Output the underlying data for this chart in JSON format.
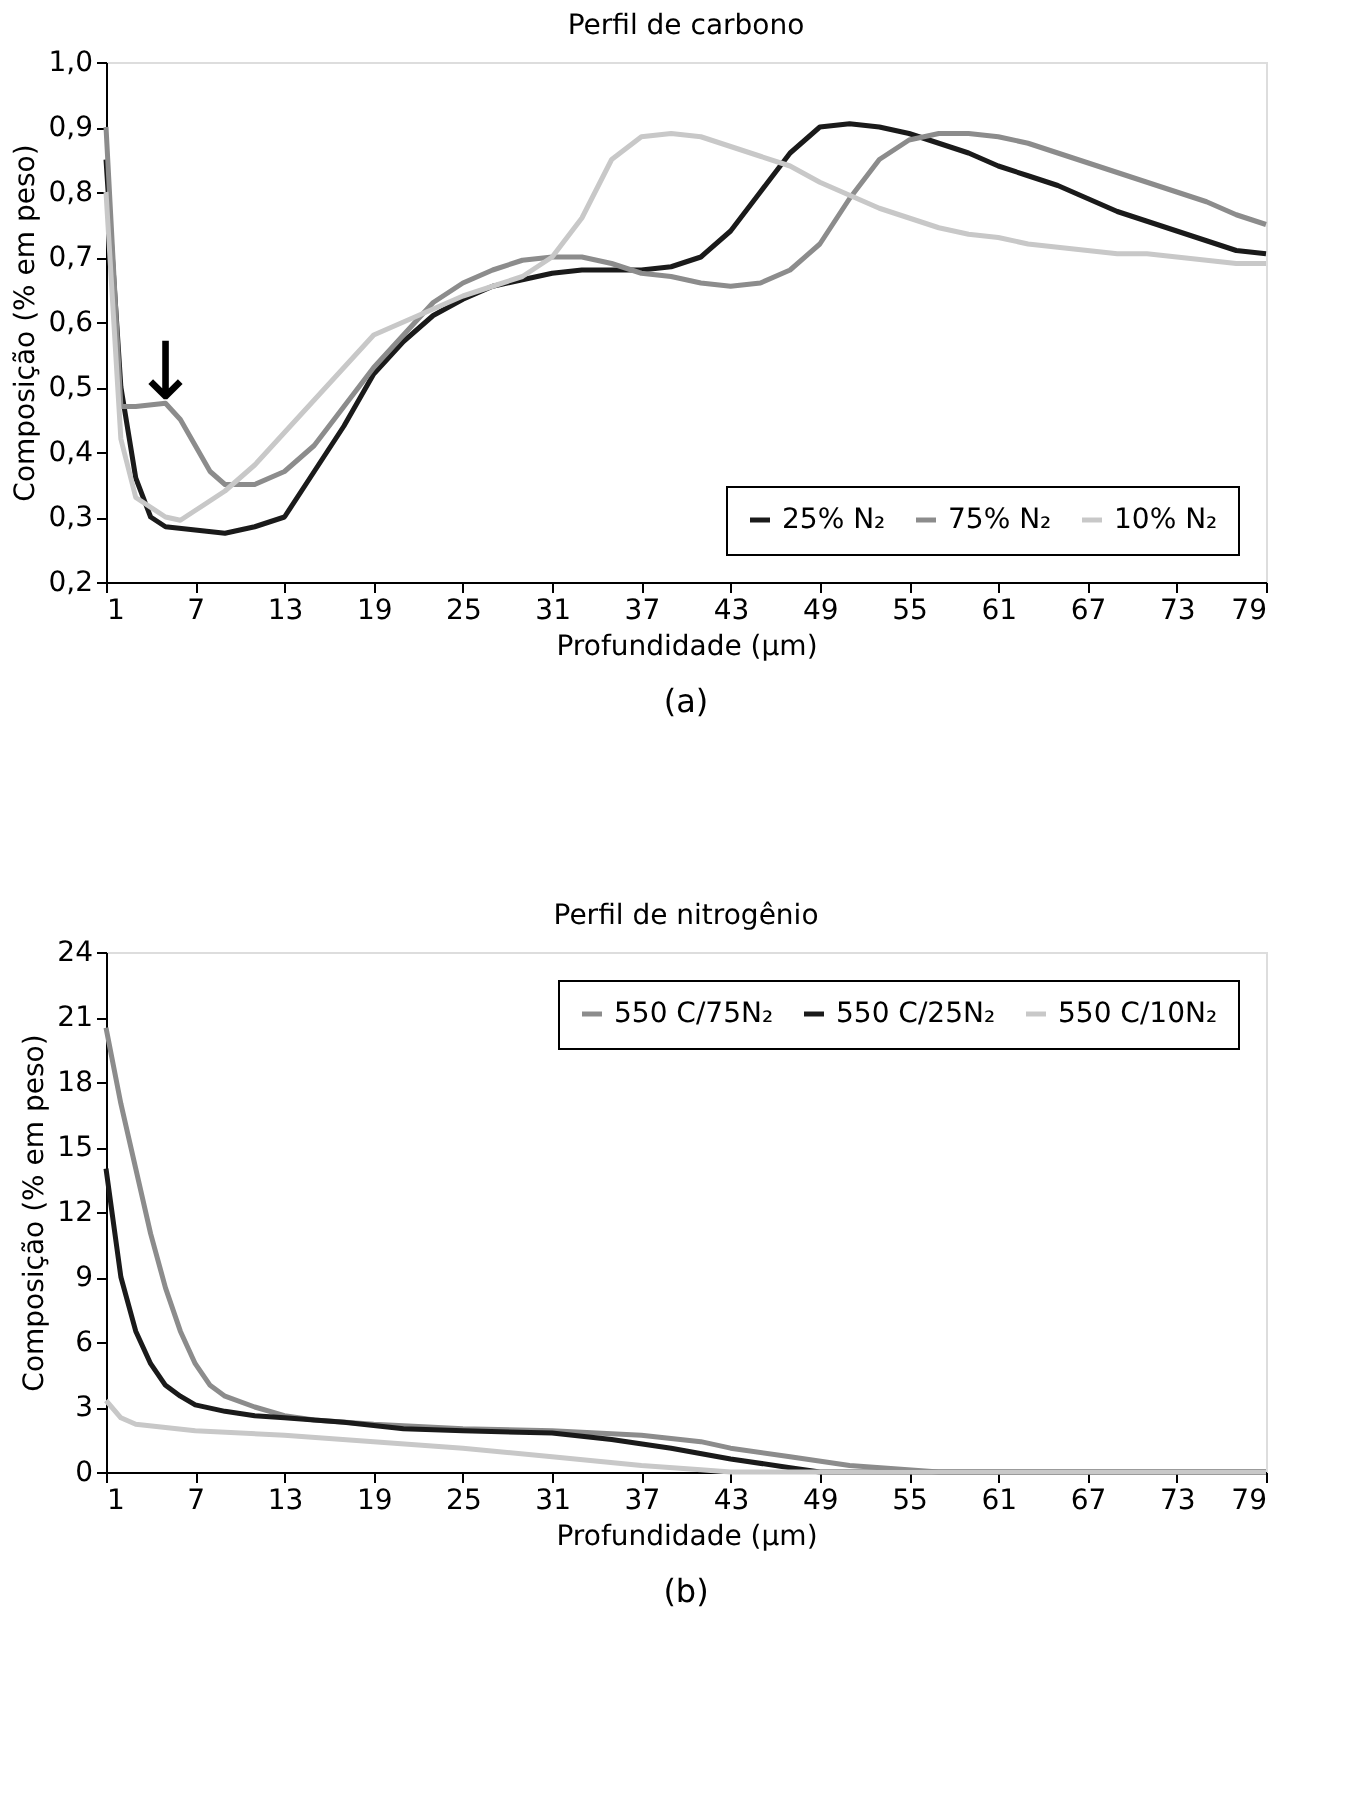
{
  "chart_data": [
    {
      "type": "line",
      "title": "Perfil de carbono",
      "xlabel": "Profundidade (μm)",
      "ylabel": "Composição (% em peso)",
      "xlim": [
        1,
        79
      ],
      "xticks": [
        1,
        7,
        13,
        19,
        25,
        31,
        37,
        43,
        49,
        55,
        61,
        67,
        73,
        79
      ],
      "ylim": [
        0.2,
        1.0
      ],
      "yticks": [
        {
          "value": 0.2,
          "label": "0,2"
        },
        {
          "value": 0.3,
          "label": "0,3"
        },
        {
          "value": 0.4,
          "label": "0,4"
        },
        {
          "value": 0.5,
          "label": "0,5"
        },
        {
          "value": 0.6,
          "label": "0,6"
        },
        {
          "value": 0.7,
          "label": "0,7"
        },
        {
          "value": 0.8,
          "label": "0,8"
        },
        {
          "value": 0.9,
          "label": "0,9"
        },
        {
          "value": 1.0,
          "label": "1,0"
        }
      ],
      "grid": false,
      "legend": "bottom right",
      "line_style": "solid",
      "marker": "none",
      "annotations": [
        {
          "text": "↓",
          "x": 5,
          "y": 0.475
        },
        "(a)"
      ],
      "series": [
        {
          "name": "25% N₂",
          "color": "#1a1a1a",
          "x": [
            1,
            2,
            3,
            4,
            5,
            7,
            9,
            11,
            13,
            15,
            17,
            19,
            21,
            23,
            25,
            27,
            29,
            31,
            33,
            35,
            37,
            39,
            41,
            43,
            45,
            47,
            49,
            51,
            53,
            55,
            57,
            59,
            61,
            63,
            65,
            67,
            69,
            71,
            73,
            75,
            77,
            79
          ],
          "values": [
            0.85,
            0.5,
            0.36,
            0.3,
            0.285,
            0.28,
            0.275,
            0.285,
            0.3,
            0.37,
            0.44,
            0.52,
            0.57,
            0.61,
            0.635,
            0.655,
            0.665,
            0.675,
            0.68,
            0.68,
            0.68,
            0.685,
            0.7,
            0.74,
            0.8,
            0.86,
            0.9,
            0.905,
            0.9,
            0.89,
            0.875,
            0.86,
            0.84,
            0.825,
            0.81,
            0.79,
            0.77,
            0.755,
            0.74,
            0.725,
            0.71,
            0.705
          ]
        },
        {
          "name": "75% N₂",
          "color": "#8c8c8c",
          "x": [
            1,
            2,
            3,
            5,
            6,
            7,
            8,
            9,
            11,
            13,
            15,
            17,
            19,
            21,
            23,
            25,
            27,
            29,
            31,
            33,
            35,
            37,
            39,
            41,
            43,
            45,
            47,
            49,
            51,
            53,
            55,
            57,
            59,
            61,
            63,
            65,
            67,
            69,
            71,
            73,
            75,
            77,
            79
          ],
          "values": [
            0.9,
            0.47,
            0.47,
            0.475,
            0.45,
            0.41,
            0.37,
            0.35,
            0.35,
            0.37,
            0.41,
            0.47,
            0.53,
            0.58,
            0.63,
            0.66,
            0.68,
            0.695,
            0.7,
            0.7,
            0.69,
            0.675,
            0.67,
            0.66,
            0.655,
            0.66,
            0.68,
            0.72,
            0.79,
            0.85,
            0.88,
            0.89,
            0.89,
            0.885,
            0.875,
            0.86,
            0.845,
            0.83,
            0.815,
            0.8,
            0.785,
            0.765,
            0.75
          ]
        },
        {
          "name": "10% N₂",
          "color": "#c8c8c8",
          "x": [
            1,
            2,
            3,
            5,
            6,
            7,
            9,
            11,
            13,
            15,
            17,
            19,
            21,
            23,
            25,
            27,
            29,
            31,
            33,
            35,
            37,
            39,
            41,
            43,
            45,
            47,
            49,
            51,
            53,
            55,
            57,
            59,
            61,
            63,
            65,
            67,
            69,
            71,
            73,
            75,
            77,
            79
          ],
          "values": [
            0.8,
            0.42,
            0.33,
            0.3,
            0.295,
            0.31,
            0.34,
            0.38,
            0.43,
            0.48,
            0.53,
            0.58,
            0.6,
            0.62,
            0.64,
            0.655,
            0.67,
            0.7,
            0.76,
            0.85,
            0.885,
            0.89,
            0.885,
            0.87,
            0.855,
            0.84,
            0.815,
            0.795,
            0.775,
            0.76,
            0.745,
            0.735,
            0.73,
            0.72,
            0.715,
            0.71,
            0.705,
            0.705,
            0.7,
            0.695,
            0.69,
            0.69
          ]
        }
      ]
    },
    {
      "type": "line",
      "title": "Perfil de nitrogênio",
      "xlabel": "Profundidade (μm)",
      "ylabel": "Composição (% em peso)",
      "xlim": [
        1,
        79
      ],
      "xticks": [
        1,
        7,
        13,
        19,
        25,
        31,
        37,
        43,
        49,
        55,
        61,
        67,
        73,
        79
      ],
      "ylim": [
        0,
        24
      ],
      "yticks": [
        0,
        3,
        6,
        9,
        12,
        15,
        18,
        21,
        24
      ],
      "grid": false,
      "legend": "top right",
      "line_style": "solid",
      "marker": "none",
      "annotations": [
        "(b)"
      ],
      "series": [
        {
          "name": "550 C/75N₂",
          "color": "#8c8c8c",
          "x": [
            1,
            2,
            3,
            4,
            5,
            6,
            7,
            8,
            9,
            11,
            13,
            15,
            19,
            25,
            31,
            37,
            41,
            43,
            47,
            51,
            57,
            79
          ],
          "values": [
            20.5,
            17,
            14,
            11,
            8.5,
            6.5,
            5,
            4,
            3.5,
            3,
            2.6,
            2.4,
            2.2,
            2.0,
            1.9,
            1.7,
            1.4,
            1.1,
            0.7,
            0.3,
            0,
            0
          ]
        },
        {
          "name": "550 C/25N₂",
          "color": "#1a1a1a",
          "x": [
            1,
            2,
            3,
            4,
            5,
            6,
            7,
            9,
            11,
            13,
            17,
            21,
            25,
            31,
            35,
            39,
            43,
            47,
            49,
            79
          ],
          "values": [
            14,
            9,
            6.5,
            5,
            4,
            3.5,
            3.1,
            2.8,
            2.6,
            2.5,
            2.3,
            2.0,
            1.9,
            1.8,
            1.5,
            1.1,
            0.6,
            0.2,
            0,
            0
          ]
        },
        {
          "name": "550 C/10N₂",
          "color": "#c8c8c8",
          "x": [
            1,
            2,
            3,
            7,
            13,
            19,
            25,
            31,
            37,
            41,
            43,
            79
          ],
          "values": [
            3.3,
            2.5,
            2.2,
            1.9,
            1.7,
            1.4,
            1.1,
            0.7,
            0.3,
            0.1,
            0,
            0
          ]
        }
      ]
    }
  ]
}
